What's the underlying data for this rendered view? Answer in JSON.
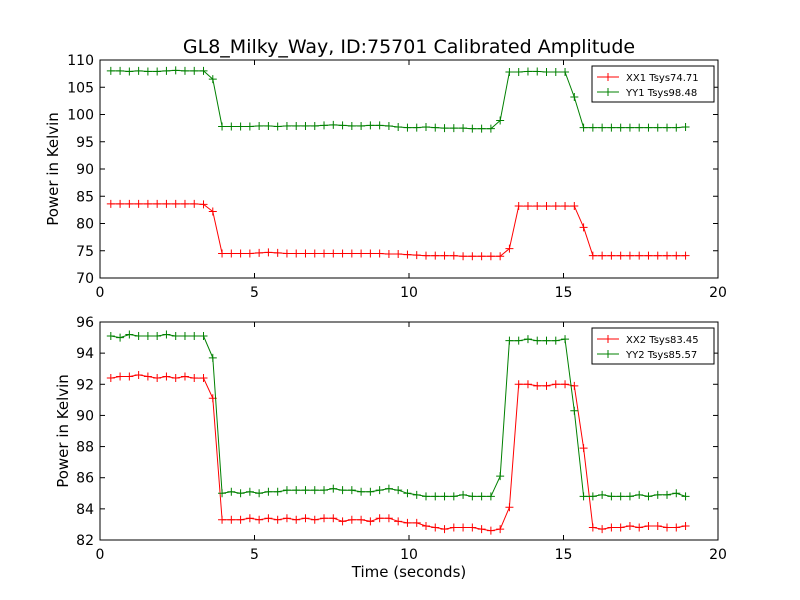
{
  "chart_data": [
    {
      "type": "line",
      "title": "GL8_Milky_Way, ID:75701 Calibrated Amplitude",
      "xlabel": "",
      "ylabel": "Power in Kelvin",
      "xlim": [
        0,
        20
      ],
      "ylim": [
        70,
        110
      ],
      "xticks": [
        0,
        5,
        10,
        15,
        20
      ],
      "yticks": [
        70,
        75,
        80,
        85,
        90,
        95,
        100,
        105,
        110
      ],
      "grid": false,
      "legend_position": "top-right",
      "x": [
        0.35,
        0.65,
        0.95,
        1.25,
        1.55,
        1.85,
        2.15,
        2.45,
        2.75,
        3.05,
        3.35,
        3.65,
        3.95,
        4.25,
        4.55,
        4.85,
        5.15,
        5.45,
        5.75,
        6.05,
        6.35,
        6.65,
        6.95,
        7.25,
        7.55,
        7.85,
        8.15,
        8.45,
        8.75,
        9.05,
        9.35,
        9.65,
        9.95,
        10.25,
        10.55,
        10.85,
        11.15,
        11.45,
        11.75,
        12.05,
        12.35,
        12.65,
        12.95,
        13.25,
        13.55,
        13.85,
        14.15,
        14.45,
        14.75,
        15.05,
        15.35,
        15.65,
        15.95,
        16.25,
        16.55,
        16.85,
        17.15,
        17.45,
        17.75,
        18.05,
        18.35,
        18.65,
        18.95
      ],
      "series": [
        {
          "name": "XX1 Tsys74.71",
          "color": "#ff0000",
          "values": [
            83.6,
            83.6,
            83.6,
            83.6,
            83.6,
            83.6,
            83.6,
            83.6,
            83.6,
            83.6,
            83.5,
            82.2,
            74.5,
            74.5,
            74.5,
            74.5,
            74.6,
            74.7,
            74.6,
            74.5,
            74.5,
            74.5,
            74.5,
            74.5,
            74.5,
            74.5,
            74.5,
            74.5,
            74.5,
            74.5,
            74.4,
            74.4,
            74.3,
            74.2,
            74.1,
            74.1,
            74.1,
            74.1,
            74.0,
            74.0,
            74.0,
            74.0,
            74.0,
            75.4,
            83.2,
            83.2,
            83.2,
            83.2,
            83.2,
            83.2,
            83.2,
            79.3,
            74.1,
            74.1,
            74.1,
            74.1,
            74.1,
            74.1,
            74.1,
            74.1,
            74.1,
            74.1,
            74.1
          ]
        },
        {
          "name": "YY1 Tsys98.48",
          "color": "#008000",
          "values": [
            108.0,
            108.0,
            107.9,
            108.0,
            107.9,
            107.9,
            108.0,
            108.1,
            108.0,
            108.0,
            108.0,
            106.5,
            97.8,
            97.8,
            97.8,
            97.8,
            97.9,
            97.9,
            97.8,
            97.9,
            97.9,
            97.9,
            97.9,
            98.0,
            98.1,
            98.0,
            97.9,
            97.9,
            98.0,
            98.0,
            97.9,
            97.7,
            97.6,
            97.6,
            97.7,
            97.6,
            97.5,
            97.5,
            97.5,
            97.4,
            97.4,
            97.4,
            98.9,
            107.8,
            107.8,
            107.9,
            107.9,
            107.8,
            107.8,
            107.8,
            103.2,
            97.6,
            97.6,
            97.6,
            97.6,
            97.6,
            97.6,
            97.6,
            97.6,
            97.6,
            97.6,
            97.6,
            97.7
          ]
        }
      ]
    },
    {
      "type": "line",
      "title": "",
      "xlabel": "Time (seconds)",
      "ylabel": "Power in Kelvin",
      "xlim": [
        0,
        20
      ],
      "ylim": [
        82,
        96
      ],
      "xticks": [
        0,
        5,
        10,
        15,
        20
      ],
      "yticks": [
        82,
        84,
        86,
        88,
        90,
        92,
        94,
        96
      ],
      "grid": false,
      "legend_position": "top-right",
      "x": [
        0.35,
        0.65,
        0.95,
        1.25,
        1.55,
        1.85,
        2.15,
        2.45,
        2.75,
        3.05,
        3.35,
        3.65,
        3.95,
        4.25,
        4.55,
        4.85,
        5.15,
        5.45,
        5.75,
        6.05,
        6.35,
        6.65,
        6.95,
        7.25,
        7.55,
        7.85,
        8.15,
        8.45,
        8.75,
        9.05,
        9.35,
        9.65,
        9.95,
        10.25,
        10.55,
        10.85,
        11.15,
        11.45,
        11.75,
        12.05,
        12.35,
        12.65,
        12.95,
        13.25,
        13.55,
        13.85,
        14.15,
        14.45,
        14.75,
        15.05,
        15.35,
        15.65,
        15.95,
        16.25,
        16.55,
        16.85,
        17.15,
        17.45,
        17.75,
        18.05,
        18.35,
        18.65,
        18.95
      ],
      "series": [
        {
          "name": "XX2 Tsys83.45",
          "color": "#ff0000",
          "values": [
            92.4,
            92.5,
            92.5,
            92.6,
            92.5,
            92.4,
            92.5,
            92.4,
            92.5,
            92.4,
            92.4,
            91.1,
            83.3,
            83.3,
            83.3,
            83.4,
            83.3,
            83.4,
            83.3,
            83.4,
            83.3,
            83.4,
            83.3,
            83.4,
            83.4,
            83.2,
            83.3,
            83.3,
            83.2,
            83.4,
            83.4,
            83.2,
            83.1,
            83.1,
            82.9,
            82.8,
            82.7,
            82.8,
            82.8,
            82.8,
            82.7,
            82.6,
            82.7,
            84.1,
            92.0,
            92.0,
            91.9,
            91.9,
            92.0,
            92.0,
            91.9,
            87.9,
            82.8,
            82.7,
            82.8,
            82.8,
            82.9,
            82.8,
            82.9,
            82.9,
            82.8,
            82.8,
            82.9
          ]
        },
        {
          "name": "YY2 Tsys85.57",
          "color": "#008000",
          "values": [
            95.1,
            95.0,
            95.2,
            95.1,
            95.1,
            95.1,
            95.2,
            95.1,
            95.1,
            95.1,
            95.1,
            93.7,
            85.0,
            85.1,
            85.0,
            85.1,
            85.0,
            85.1,
            85.1,
            85.2,
            85.2,
            85.2,
            85.2,
            85.2,
            85.3,
            85.2,
            85.2,
            85.1,
            85.1,
            85.2,
            85.3,
            85.2,
            85.0,
            84.9,
            84.8,
            84.8,
            84.8,
            84.8,
            84.9,
            84.8,
            84.8,
            84.8,
            86.1,
            94.8,
            94.8,
            94.9,
            94.8,
            94.8,
            94.8,
            94.9,
            90.3,
            84.8,
            84.8,
            84.9,
            84.8,
            84.8,
            84.8,
            84.9,
            84.8,
            84.9,
            84.9,
            85.0,
            84.8
          ]
        }
      ]
    }
  ]
}
